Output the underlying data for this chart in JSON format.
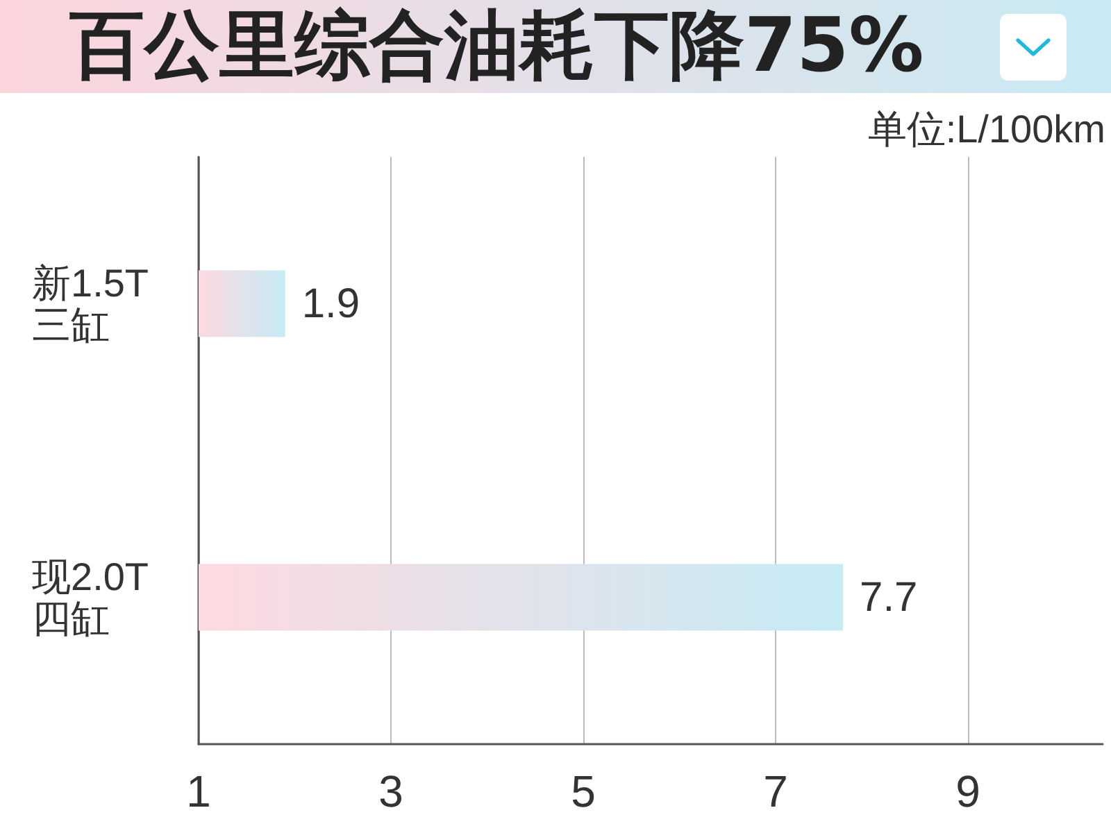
{
  "chart_data": {
    "type": "bar",
    "orientation": "horizontal",
    "title": "百公里综合油耗下降75%",
    "annotations": [
      "单位:L/100km"
    ],
    "categories": [
      "新1.5T\n三缸",
      "现2.0T\n四缸"
    ],
    "values": [
      1.9,
      7.7
    ],
    "color": "#fdd9e0",
    "xlim": [
      1,
      10.4
    ],
    "xticks": [
      1,
      3,
      5,
      7,
      9
    ],
    "grid": "x",
    "data_labels": true
  }
}
